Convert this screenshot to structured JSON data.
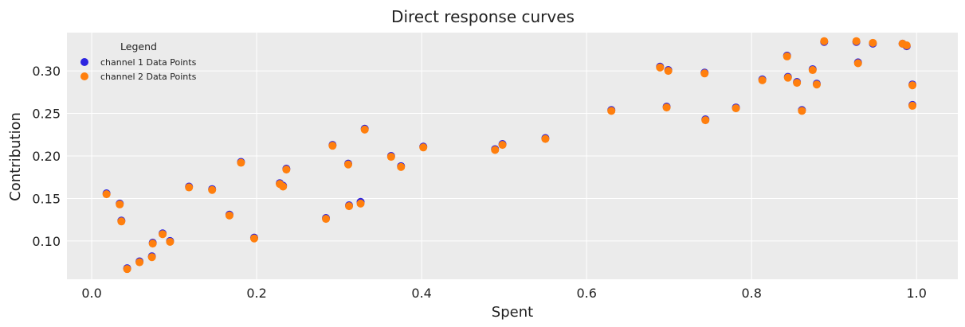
{
  "chart_data": {
    "type": "scatter",
    "title": "Direct response curves",
    "xlabel": "Spent",
    "ylabel": "Contribution",
    "xlim": [
      -0.03,
      1.05
    ],
    "ylim": [
      0.055,
      0.345
    ],
    "xticks": [
      0.0,
      0.2,
      0.4,
      0.6,
      0.8,
      1.0
    ],
    "xtick_labels": [
      "0.0",
      "0.2",
      "0.4",
      "0.6",
      "0.8",
      "1.0"
    ],
    "yticks": [
      0.1,
      0.15,
      0.2,
      0.25,
      0.3
    ],
    "ytick_labels": [
      "0.10",
      "0.15",
      "0.20",
      "0.25",
      "0.30"
    ],
    "grid": true,
    "background": "#ebebeb",
    "legend": {
      "title": "Legend",
      "position": "top-left"
    },
    "series": [
      {
        "name": "channel 1 Data Points",
        "color": "#2c24e0",
        "points": [
          [
            0.018,
            0.156
          ],
          [
            0.034,
            0.144
          ],
          [
            0.036,
            0.124
          ],
          [
            0.043,
            0.068
          ],
          [
            0.058,
            0.076
          ],
          [
            0.073,
            0.082
          ],
          [
            0.074,
            0.098
          ],
          [
            0.086,
            0.109
          ],
          [
            0.095,
            0.1
          ],
          [
            0.118,
            0.164
          ],
          [
            0.146,
            0.161
          ],
          [
            0.167,
            0.131
          ],
          [
            0.181,
            0.193
          ],
          [
            0.197,
            0.104
          ],
          [
            0.228,
            0.168
          ],
          [
            0.232,
            0.165
          ],
          [
            0.236,
            0.185
          ],
          [
            0.284,
            0.127
          ],
          [
            0.292,
            0.213
          ],
          [
            0.311,
            0.191
          ],
          [
            0.312,
            0.142
          ],
          [
            0.326,
            0.146
          ],
          [
            0.331,
            0.232
          ],
          [
            0.363,
            0.2
          ],
          [
            0.375,
            0.188
          ],
          [
            0.402,
            0.211
          ],
          [
            0.489,
            0.208
          ],
          [
            0.498,
            0.214
          ],
          [
            0.55,
            0.221
          ],
          [
            0.63,
            0.254
          ],
          [
            0.689,
            0.305
          ],
          [
            0.697,
            0.258
          ],
          [
            0.699,
            0.301
          ],
          [
            0.743,
            0.298
          ],
          [
            0.744,
            0.243
          ],
          [
            0.781,
            0.257
          ],
          [
            0.813,
            0.29
          ],
          [
            0.843,
            0.318
          ],
          [
            0.844,
            0.293
          ],
          [
            0.855,
            0.287
          ],
          [
            0.861,
            0.254
          ],
          [
            0.874,
            0.302
          ],
          [
            0.879,
            0.285
          ],
          [
            0.888,
            0.334
          ],
          [
            0.927,
            0.334
          ],
          [
            0.929,
            0.31
          ],
          [
            0.947,
            0.332
          ],
          [
            0.983,
            0.332
          ],
          [
            0.988,
            0.329
          ],
          [
            0.995,
            0.284
          ],
          [
            0.995,
            0.26
          ]
        ]
      },
      {
        "name": "channel 2 Data Points",
        "color": "#ff7f0e",
        "points": [
          [
            0.018,
            0.155
          ],
          [
            0.034,
            0.143
          ],
          [
            0.036,
            0.123
          ],
          [
            0.043,
            0.067
          ],
          [
            0.058,
            0.075
          ],
          [
            0.073,
            0.081
          ],
          [
            0.074,
            0.097
          ],
          [
            0.086,
            0.108
          ],
          [
            0.095,
            0.099
          ],
          [
            0.118,
            0.163
          ],
          [
            0.146,
            0.16
          ],
          [
            0.167,
            0.13
          ],
          [
            0.181,
            0.192
          ],
          [
            0.197,
            0.103
          ],
          [
            0.228,
            0.167
          ],
          [
            0.232,
            0.164
          ],
          [
            0.236,
            0.184
          ],
          [
            0.284,
            0.126
          ],
          [
            0.292,
            0.212
          ],
          [
            0.311,
            0.19
          ],
          [
            0.312,
            0.141
          ],
          [
            0.326,
            0.144
          ],
          [
            0.331,
            0.231
          ],
          [
            0.363,
            0.199
          ],
          [
            0.375,
            0.187
          ],
          [
            0.402,
            0.21
          ],
          [
            0.489,
            0.207
          ],
          [
            0.498,
            0.213
          ],
          [
            0.55,
            0.22
          ],
          [
            0.63,
            0.253
          ],
          [
            0.689,
            0.304
          ],
          [
            0.697,
            0.257
          ],
          [
            0.699,
            0.3
          ],
          [
            0.743,
            0.297
          ],
          [
            0.744,
            0.242
          ],
          [
            0.781,
            0.256
          ],
          [
            0.813,
            0.289
          ],
          [
            0.843,
            0.317
          ],
          [
            0.844,
            0.292
          ],
          [
            0.855,
            0.286
          ],
          [
            0.861,
            0.253
          ],
          [
            0.874,
            0.301
          ],
          [
            0.879,
            0.284
          ],
          [
            0.888,
            0.335
          ],
          [
            0.927,
            0.335
          ],
          [
            0.929,
            0.309
          ],
          [
            0.947,
            0.333
          ],
          [
            0.983,
            0.332
          ],
          [
            0.988,
            0.33
          ],
          [
            0.995,
            0.283
          ],
          [
            0.995,
            0.259
          ]
        ]
      }
    ]
  }
}
